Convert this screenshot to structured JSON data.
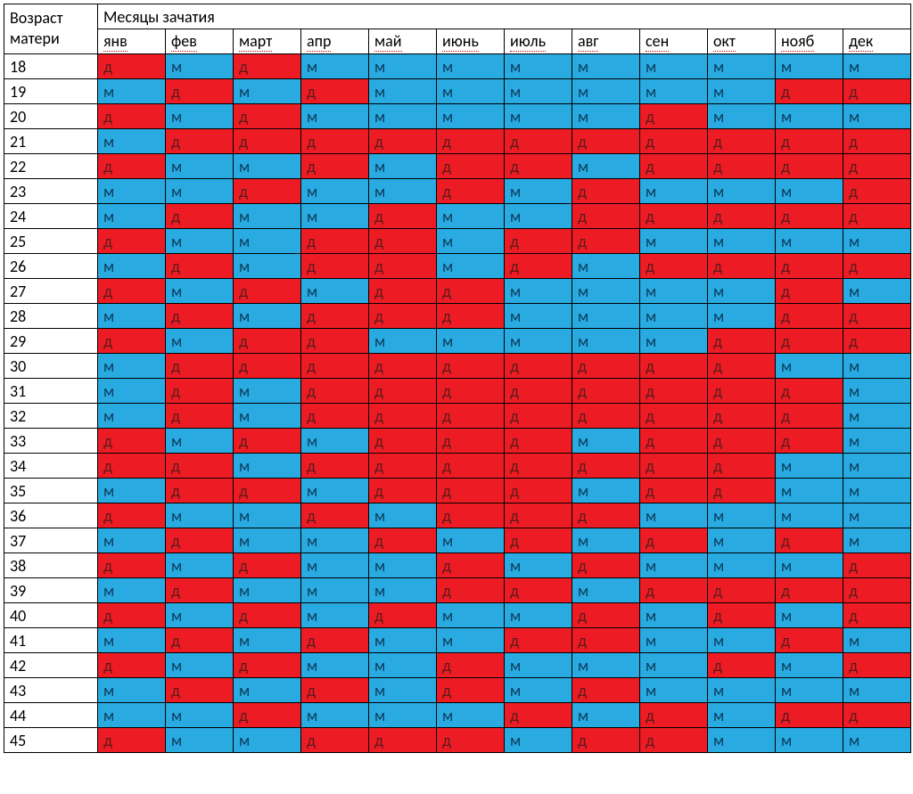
{
  "labels": {
    "corner": "Возраст матери",
    "header_title": "Месяцы зачатия"
  },
  "months": [
    "янв",
    "фев",
    "март",
    "апр",
    "май",
    "июнь",
    "июль",
    "авг",
    "сен",
    "окт",
    "нояб",
    "дек"
  ],
  "ages": [
    18,
    19,
    20,
    21,
    22,
    23,
    24,
    25,
    26,
    27,
    28,
    29,
    30,
    31,
    32,
    33,
    34,
    35,
    36,
    37,
    38,
    39,
    40,
    41,
    42,
    43,
    44,
    45
  ],
  "values": {
    "д": "д",
    "м": "м"
  },
  "colors": {
    "д": "#ed1c24",
    "м": "#29abe2",
    "header_bg": "#ffffff",
    "border": "#000000"
  },
  "grid": [
    [
      "д",
      "м",
      "д",
      "м",
      "м",
      "м",
      "м",
      "м",
      "м",
      "м",
      "м",
      "м"
    ],
    [
      "м",
      "д",
      "м",
      "д",
      "м",
      "м",
      "м",
      "м",
      "м",
      "м",
      "д",
      "д"
    ],
    [
      "д",
      "м",
      "д",
      "м",
      "м",
      "м",
      "м",
      "м",
      "д",
      "м",
      "м",
      "м"
    ],
    [
      "м",
      "д",
      "д",
      "д",
      "д",
      "д",
      "д",
      "д",
      "д",
      "д",
      "д",
      "д"
    ],
    [
      "д",
      "м",
      "м",
      "д",
      "м",
      "д",
      "д",
      "м",
      "д",
      "д",
      "д",
      "д"
    ],
    [
      "м",
      "м",
      "д",
      "м",
      "м",
      "д",
      "м",
      "д",
      "м",
      "м",
      "м",
      "д"
    ],
    [
      "м",
      "д",
      "м",
      "м",
      "д",
      "м",
      "м",
      "д",
      "д",
      "д",
      "д",
      "д"
    ],
    [
      "д",
      "м",
      "м",
      "д",
      "д",
      "м",
      "д",
      "д",
      "м",
      "м",
      "м",
      "м"
    ],
    [
      "м",
      "д",
      "м",
      "д",
      "д",
      "м",
      "д",
      "м",
      "д",
      "д",
      "д",
      "д"
    ],
    [
      "д",
      "м",
      "д",
      "м",
      "д",
      "д",
      "м",
      "м",
      "м",
      "м",
      "д",
      "м"
    ],
    [
      "м",
      "д",
      "м",
      "д",
      "д",
      "д",
      "м",
      "м",
      "м",
      "м",
      "д",
      "д"
    ],
    [
      "д",
      "м",
      "д",
      "д",
      "м",
      "м",
      "м",
      "м",
      "м",
      "д",
      "д",
      "д"
    ],
    [
      "м",
      "д",
      "д",
      "д",
      "д",
      "д",
      "д",
      "д",
      "д",
      "д",
      "м",
      "м"
    ],
    [
      "м",
      "д",
      "м",
      "д",
      "д",
      "д",
      "д",
      "д",
      "д",
      "д",
      "д",
      "м"
    ],
    [
      "м",
      "д",
      "м",
      "д",
      "д",
      "д",
      "д",
      "д",
      "д",
      "д",
      "д",
      "м"
    ],
    [
      "д",
      "м",
      "д",
      "м",
      "д",
      "д",
      "д",
      "м",
      "д",
      "д",
      "д",
      "м"
    ],
    [
      "д",
      "д",
      "м",
      "д",
      "д",
      "д",
      "д",
      "д",
      "д",
      "д",
      "м",
      "м"
    ],
    [
      "м",
      "д",
      "д",
      "м",
      "д",
      "д",
      "д",
      "м",
      "д",
      "д",
      "м",
      "м"
    ],
    [
      "д",
      "м",
      "м",
      "д",
      "м",
      "д",
      "д",
      "д",
      "м",
      "м",
      "м",
      "м"
    ],
    [
      "м",
      "д",
      "м",
      "м",
      "д",
      "м",
      "д",
      "м",
      "д",
      "м",
      "д",
      "м"
    ],
    [
      "д",
      "м",
      "д",
      "м",
      "м",
      "д",
      "м",
      "д",
      "м",
      "м",
      "м",
      "д"
    ],
    [
      "м",
      "д",
      "м",
      "м",
      "м",
      "д",
      "д",
      "м",
      "д",
      "д",
      "д",
      "д"
    ],
    [
      "д",
      "м",
      "д",
      "м",
      "д",
      "м",
      "м",
      "д",
      "м",
      "д",
      "м",
      "д"
    ],
    [
      "м",
      "д",
      "м",
      "д",
      "м",
      "м",
      "д",
      "д",
      "м",
      "м",
      "д",
      "м"
    ],
    [
      "д",
      "м",
      "д",
      "м",
      "м",
      "д",
      "м",
      "м",
      "м",
      "д",
      "м",
      "д"
    ],
    [
      "м",
      "д",
      "м",
      "д",
      "м",
      "д",
      "м",
      "д",
      "м",
      "м",
      "м",
      "м"
    ],
    [
      "м",
      "м",
      "д",
      "м",
      "м",
      "м",
      "д",
      "м",
      "д",
      "м",
      "д",
      "д"
    ],
    [
      "д",
      "м",
      "м",
      "д",
      "д",
      "д",
      "м",
      "д",
      "д",
      "м",
      "м",
      "м"
    ]
  ]
}
